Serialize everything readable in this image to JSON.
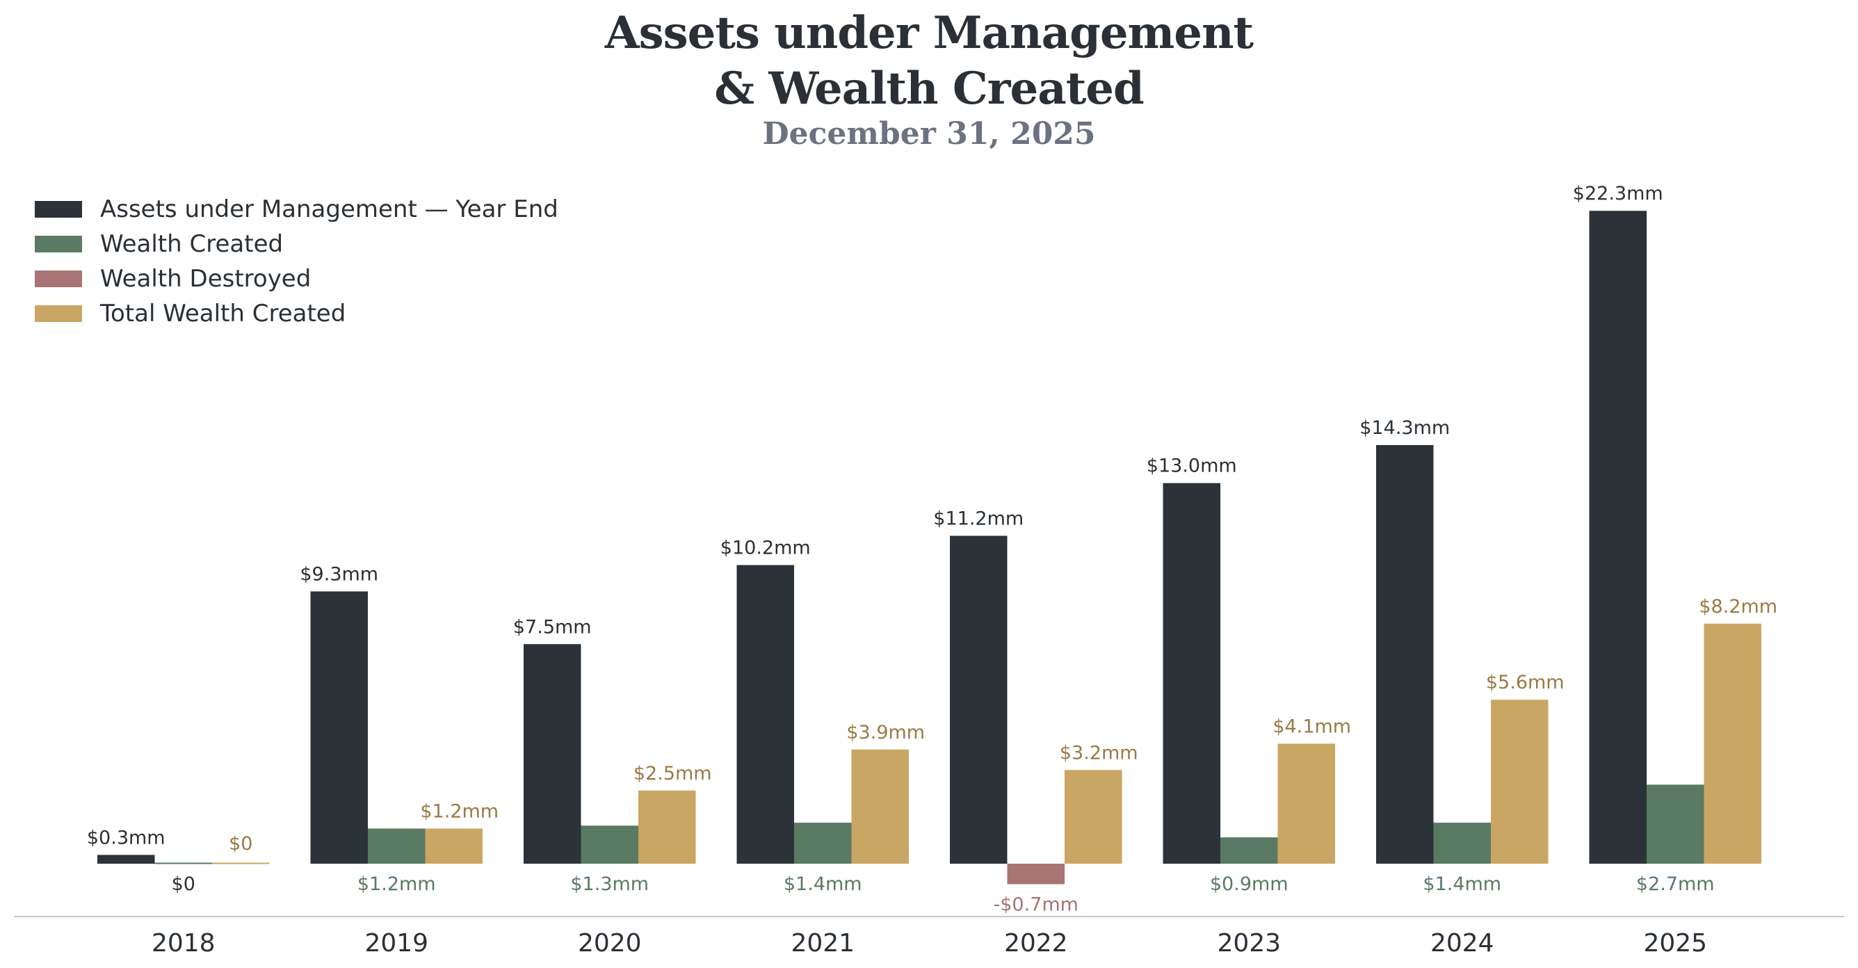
{
  "chart_data": {
    "type": "bar",
    "title_lines": [
      "Assets under Management",
      "& Wealth Created"
    ],
    "subtitle": "December 31, 2025",
    "categories": [
      "2018",
      "2019",
      "2020",
      "2021",
      "2022",
      "2023",
      "2024",
      "2025"
    ],
    "series": [
      {
        "name": "Assets under Management — Year End",
        "color": "#2b3238",
        "values": [
          0.3,
          9.3,
          7.5,
          10.2,
          11.2,
          13.0,
          14.3,
          22.3
        ],
        "labels": [
          "$0.3mm",
          "$9.3mm",
          "$7.5mm",
          "$10.2mm",
          "$11.2mm",
          "$13.0mm",
          "$14.3mm",
          "$22.3mm"
        ]
      },
      {
        "name": "Wealth Created",
        "color": "#5a7a64",
        "values": [
          0,
          1.2,
          1.3,
          1.4,
          -0.7,
          0.9,
          1.4,
          2.7
        ],
        "labels": [
          "$0",
          "$1.2mm",
          "$1.3mm",
          "$1.4mm",
          "-$0.7mm",
          "$0.9mm",
          "$1.4mm",
          "$2.7mm"
        ]
      },
      {
        "name": "Total Wealth Created",
        "color": "#c9a663",
        "values": [
          0,
          1.2,
          2.5,
          3.9,
          3.2,
          4.1,
          5.6,
          8.2
        ],
        "labels": [
          "$0",
          "$1.2mm",
          "$2.5mm",
          "$3.9mm",
          "$3.2mm",
          "$4.1mm",
          "$5.6mm",
          "$8.2mm"
        ]
      }
    ],
    "legend": [
      {
        "name": "Assets under Management — Year End",
        "color": "#2b3238"
      },
      {
        "name": "Wealth Created",
        "color": "#5a7a64"
      },
      {
        "name": "Wealth Destroyed",
        "color": "#a87474"
      },
      {
        "name": "Total Wealth Created",
        "color": "#c9a663"
      }
    ],
    "legend_position": "top-left",
    "colors": {
      "negative": "#a87474",
      "created_label": "#5a7a64",
      "total_label": "#9a7a45",
      "aum_label": "#2a3035",
      "zero_label": "#2a3035",
      "baseline": "#c8c8c8"
    },
    "ylim": [
      -1.5,
      22.3
    ],
    "grid": false
  }
}
